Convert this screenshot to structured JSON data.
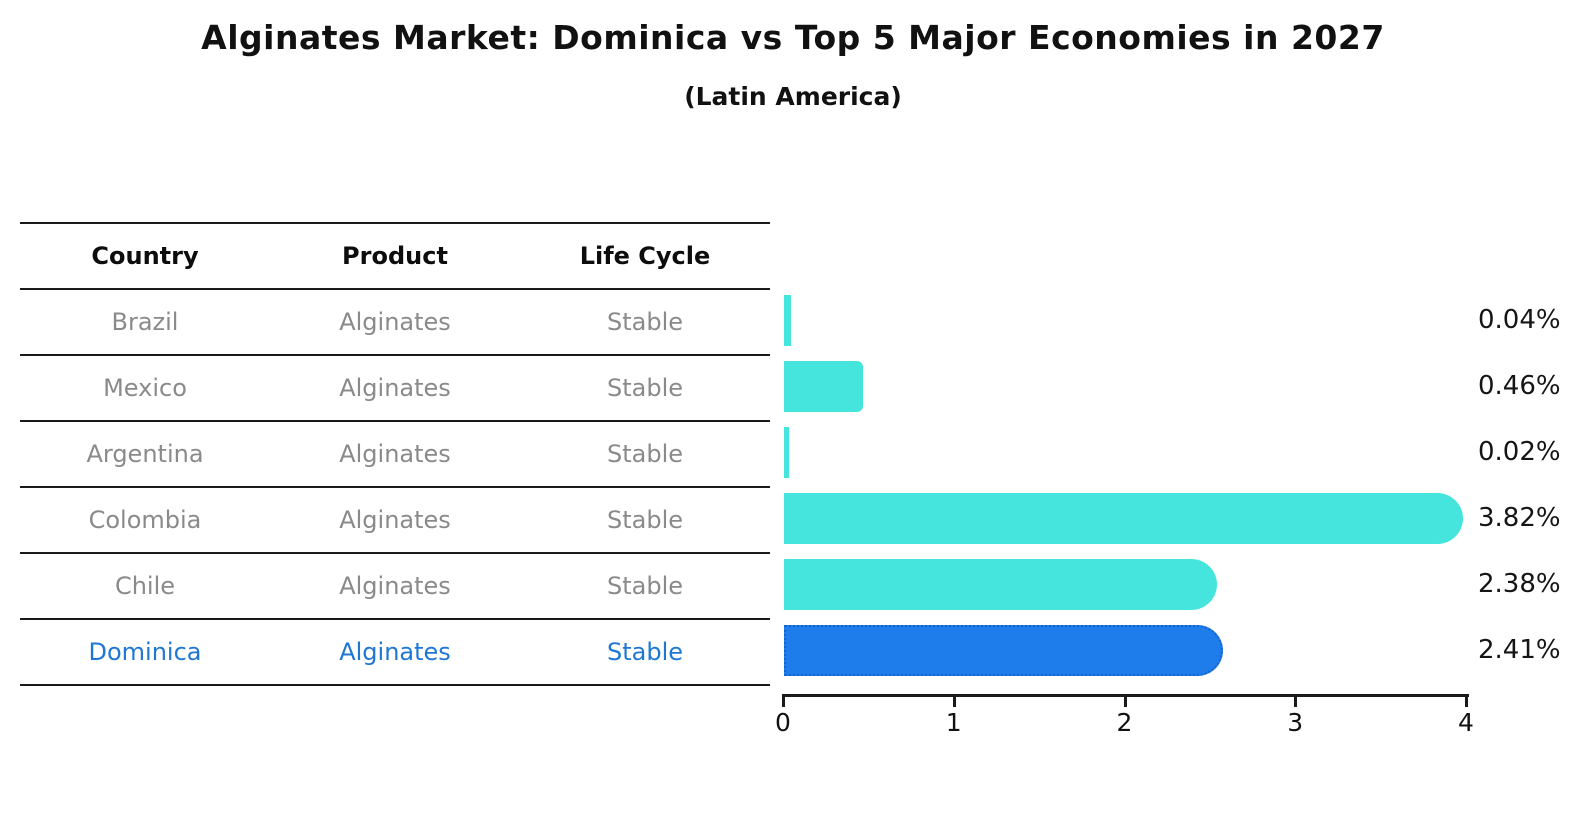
{
  "table": {
    "columns": [
      "Country",
      "Product",
      "Life Cycle"
    ],
    "rows": [
      {
        "country": "Brazil",
        "product": "Alginates",
        "life_cycle": "Stable",
        "highlighted": false
      },
      {
        "country": "Mexico",
        "product": "Alginates",
        "life_cycle": "Stable",
        "highlighted": false
      },
      {
        "country": "Argentina",
        "product": "Alginates",
        "life_cycle": "Stable",
        "highlighted": false
      },
      {
        "country": "Colombia",
        "product": "Alginates",
        "life_cycle": "Stable",
        "highlighted": false
      },
      {
        "country": "Chile",
        "product": "Alginates",
        "life_cycle": "Stable",
        "highlighted": false
      },
      {
        "country": "Dominica",
        "product": "Alginates",
        "life_cycle": "Stable",
        "highlighted": true
      }
    ]
  },
  "chart_data": {
    "type": "bar",
    "orientation": "horizontal",
    "title": "Alginates Market: Dominica vs Top 5 Major Economies in 2027",
    "subtitle": "(Latin America)",
    "categories": [
      "Brazil",
      "Mexico",
      "Argentina",
      "Colombia",
      "Chile",
      "Dominica"
    ],
    "values": [
      0.04,
      0.46,
      0.02,
      3.82,
      2.38,
      2.41
    ],
    "value_labels": [
      "0.04%",
      "0.46%",
      "0.02%",
      "3.82%",
      "2.38%",
      "2.41%"
    ],
    "x_ticks": [
      0,
      1,
      2,
      3,
      4
    ],
    "xlim": [
      0,
      4
    ],
    "xlabel": "",
    "ylabel": "",
    "grid": false,
    "legend": false,
    "highlight_index": 5,
    "bar_color": "#45E5DD",
    "highlight_bar_color": "#1E7DEB",
    "highlight_border_color": "#1563CF",
    "highlight_text_color": "#1f77d4"
  }
}
